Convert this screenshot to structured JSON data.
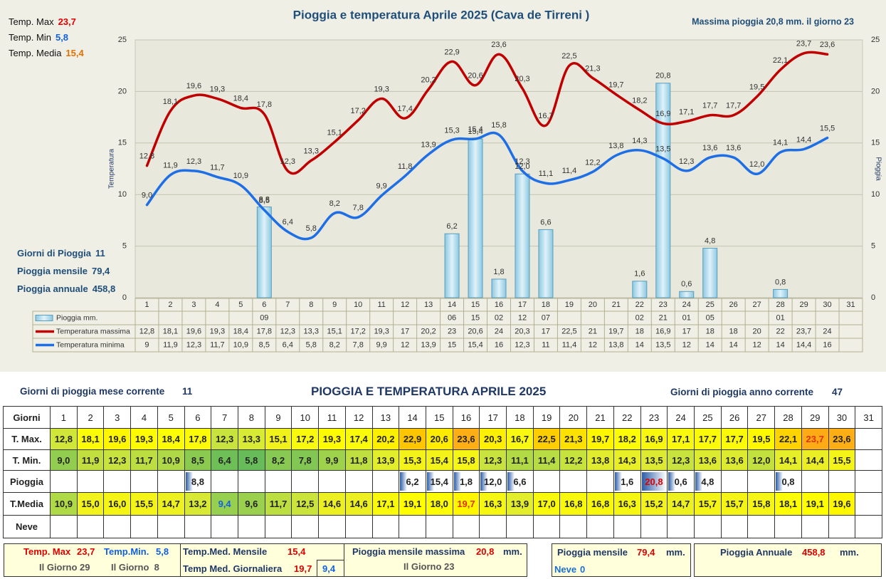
{
  "chart_data": {
    "type": "combo",
    "title": "Pioggia e temperatura Aprile 2025 (Cava de Tirreni )",
    "annotation": "Massima pioggia  20,8 mm. il giorno 23",
    "stats": [
      {
        "label": "Temp. Max",
        "value": "23,7",
        "color": "#e00000"
      },
      {
        "label": "Temp. Min",
        "value": "5,8",
        "color": "#1060e0"
      },
      {
        "label": "Temp. Media",
        "value": "15,4",
        "color": "#e07000"
      }
    ],
    "rain_stats": [
      {
        "label": "Giorni di Pioggia",
        "value": "11"
      },
      {
        "label": "Pioggia mensile",
        "value": "79,4"
      },
      {
        "label": "Pioggia annuale",
        "value": "458,8"
      }
    ],
    "ylabel": "Temperatura",
    "y2label": "Pioggia",
    "ylim": [
      0,
      25
    ],
    "yticks": [
      0,
      5,
      10,
      15,
      20,
      25
    ],
    "y2lim": [
      0,
      25
    ],
    "y2ticks": [
      0,
      5,
      10,
      15,
      20,
      25
    ],
    "grid": true,
    "categories": [
      "1",
      "2",
      "3",
      "4",
      "5",
      "6",
      "7",
      "8",
      "9",
      "10",
      "11",
      "12",
      "13",
      "14",
      "15",
      "16",
      "17",
      "18",
      "19",
      "20",
      "21",
      "22",
      "23",
      "24",
      "25",
      "26",
      "27",
      "28",
      "29",
      "30",
      "31"
    ],
    "series": [
      {
        "name": "Pioggia mm.",
        "type": "bar",
        "axis": "y2",
        "color": "#a8d8ea",
        "values": [
          null,
          null,
          null,
          null,
          null,
          8.8,
          null,
          null,
          null,
          null,
          null,
          null,
          null,
          6.2,
          15.4,
          1.8,
          12.0,
          6.6,
          null,
          null,
          null,
          1.6,
          20.8,
          0.6,
          4.8,
          null,
          null,
          0.8,
          null,
          null,
          null
        ],
        "value_labels": [
          null,
          null,
          null,
          null,
          null,
          "8,8",
          null,
          null,
          null,
          null,
          null,
          null,
          null,
          "6,2",
          "15,4",
          "1,8",
          "12,0",
          "6,6",
          null,
          null,
          null,
          "1,6",
          "20,8",
          "0,6",
          "4,8",
          null,
          null,
          "0,8",
          null,
          null,
          null
        ],
        "table_values": [
          null,
          null,
          null,
          null,
          null,
          "09",
          null,
          null,
          null,
          null,
          null,
          null,
          null,
          "06",
          "15",
          "02",
          "12",
          "07",
          null,
          null,
          null,
          "02",
          "21",
          "01",
          "05",
          null,
          null,
          "01",
          null,
          null,
          null
        ]
      },
      {
        "name": "Temperatura massima",
        "type": "line",
        "color": "#c00000",
        "values": [
          12.8,
          18.1,
          19.6,
          19.3,
          18.4,
          17.8,
          12.3,
          13.3,
          15.1,
          17.2,
          19.3,
          17.4,
          20.2,
          22.9,
          20.6,
          23.6,
          20.3,
          16.7,
          22.5,
          21.3,
          19.7,
          18.2,
          16.9,
          17.1,
          17.7,
          17.7,
          19.5,
          22.1,
          23.7,
          23.6,
          null
        ],
        "value_labels": [
          "12,8",
          "18,1",
          "19,6",
          "19,3",
          "18,4",
          "17,8",
          "12,3",
          "13,3",
          "15,1",
          "17,2",
          "19,3",
          "17,4",
          "20,2",
          "22,9",
          "20,6",
          "23,6",
          "20,3",
          "16,7",
          "22,5",
          "21,3",
          "19,7",
          "18,2",
          "16,9",
          "17,1",
          "17,7",
          "17,7",
          "19,5",
          "22,1",
          "23,7",
          "23,6",
          null
        ],
        "table_values": [
          "12,8",
          "18,1",
          "19,6",
          "19,3",
          "18,4",
          "17,8",
          "12,3",
          "13,3",
          "15,1",
          "17,2",
          "19,3",
          "17",
          "20,2",
          "23",
          "20,6",
          "24",
          "20,3",
          "17",
          "22,5",
          "21",
          "19,7",
          "18",
          "16,9",
          "17",
          "18",
          "18",
          "20",
          "22",
          "23,7",
          "24",
          null
        ]
      },
      {
        "name": "Temperatura minima",
        "type": "line",
        "color": "#1e6fe6",
        "values": [
          9.0,
          11.9,
          12.3,
          11.7,
          10.9,
          8.5,
          6.4,
          5.8,
          8.2,
          7.8,
          9.9,
          11.8,
          13.9,
          15.3,
          15.4,
          15.8,
          12.3,
          11.1,
          11.4,
          12.2,
          13.8,
          14.3,
          13.5,
          12.3,
          13.6,
          13.6,
          12.0,
          14.1,
          14.4,
          15.5,
          null
        ],
        "value_labels": [
          "9,0",
          "11,9",
          "12,3",
          "11,7",
          "10,9",
          "8,5",
          "6,4",
          "5,8",
          "8,2",
          "7,8",
          "9,9",
          "11,8",
          "13,9",
          "15,3",
          "15,4",
          "15,8",
          "12,3",
          "11,1",
          "11,4",
          "12,2",
          "13,8",
          "14,3",
          "13,5",
          "12,3",
          "13,6",
          "13,6",
          "12,0",
          "14,1",
          "14,4",
          "15,5",
          null
        ],
        "table_values": [
          "9",
          "11,9",
          "12,3",
          "11,7",
          "10,9",
          "8,5",
          "6,4",
          "5,8",
          "8,2",
          "7,8",
          "9,9",
          "12",
          "13,9",
          "15",
          "15,4",
          "16",
          "12,3",
          "11",
          "11,4",
          "12",
          "13,8",
          "14",
          "13,5",
          "12",
          "14",
          "14",
          "12",
          "14",
          "14,4",
          "16",
          null
        ]
      }
    ]
  },
  "summary_header": {
    "left_label": "Giorni di pioggia mese corrente",
    "left_value": "11",
    "title": "PIOGGIA E TEMPERATURA APRILE 2025",
    "right_label": "Giorni di pioggia anno corrente",
    "right_value": "47"
  },
  "table": {
    "rows": [
      {
        "label": "Giorni",
        "cells": [
          "1",
          "2",
          "3",
          "4",
          "5",
          "6",
          "7",
          "8",
          "9",
          "10",
          "11",
          "12",
          "13",
          "14",
          "15",
          "16",
          "17",
          "18",
          "19",
          "20",
          "21",
          "22",
          "23",
          "24",
          "25",
          "26",
          "27",
          "28",
          "29",
          "30",
          "31"
        ]
      },
      {
        "label": "T. Max.",
        "cells": [
          "12,8",
          "18,1",
          "19,6",
          "19,3",
          "18,4",
          "17,8",
          "12,3",
          "13,3",
          "15,1",
          "17,2",
          "19,3",
          "17,4",
          "20,2",
          "22,9",
          "20,6",
          "23,6",
          "20,3",
          "16,7",
          "22,5",
          "21,3",
          "19,7",
          "18,2",
          "16,9",
          "17,1",
          "17,7",
          "17,7",
          "19,5",
          "22,1",
          "23,7",
          "23,6",
          null
        ]
      },
      {
        "label": "T. Min.",
        "cells": [
          "9,0",
          "11,9",
          "12,3",
          "11,7",
          "10,9",
          "8,5",
          "6,4",
          "5,8",
          "8,2",
          "7,8",
          "9,9",
          "11,8",
          "13,9",
          "15,3",
          "15,4",
          "15,8",
          "12,3",
          "11,1",
          "11,4",
          "12,2",
          "13,8",
          "14,3",
          "13,5",
          "12,3",
          "13,6",
          "13,6",
          "12,0",
          "14,1",
          "14,4",
          "15,5",
          null
        ]
      },
      {
        "label": "Pioggia",
        "cells": [
          null,
          null,
          null,
          null,
          null,
          "8,8",
          null,
          null,
          null,
          null,
          null,
          null,
          null,
          "6,2",
          "15,4",
          "1,8",
          "12,0",
          "6,6",
          null,
          null,
          null,
          "1,6",
          "20,8",
          "0,6",
          "4,8",
          null,
          null,
          "0,8",
          null,
          null,
          null
        ]
      },
      {
        "label": "T.Media",
        "cells": [
          "10,9",
          "15,0",
          "16,0",
          "15,5",
          "14,7",
          "13,2",
          "9,4",
          "9,6",
          "11,7",
          "12,5",
          "14,6",
          "14,6",
          "17,1",
          "19,1",
          "18,0",
          "19,7",
          "16,3",
          "13,9",
          "17,0",
          "16,8",
          "16,8",
          "16,3",
          "15,2",
          "14,7",
          "15,7",
          "15,7",
          "15,8",
          "18,1",
          "19,1",
          "19,6",
          null
        ]
      },
      {
        "label": "Neve",
        "cells": [
          null,
          null,
          null,
          null,
          null,
          null,
          null,
          null,
          null,
          null,
          null,
          null,
          null,
          null,
          null,
          null,
          null,
          null,
          null,
          null,
          null,
          null,
          null,
          null,
          null,
          null,
          null,
          null,
          null,
          null,
          null
        ]
      }
    ]
  },
  "footer": {
    "tmax_label": "Temp. Max",
    "tmax_value": "23,7",
    "tmin_label": "Temp.Min.",
    "tmin_value": "5,8",
    "tmax_day": "Il Giorno 29",
    "tmin_day": "Il Giorno  8",
    "med_mensile_label": "Temp.Med. Mensile",
    "med_mensile_value": "15,4",
    "med_giornaliera_label": "Temp Med. Giornaliera",
    "med_giornaliera_max": "19,7",
    "med_giornaliera_min": "9,4",
    "pioggia_max_label": "Pioggia mensile massima",
    "pioggia_max_value": "20,8",
    "pioggia_max_unit": "mm.",
    "pioggia_max_day": "Il Giorno 23",
    "pioggia_mensile_label": "Pioggia mensile",
    "pioggia_mensile_value": "79,4",
    "pioggia_mensile_unit": "mm.",
    "neve_label": "Neve",
    "neve_value": "0",
    "pioggia_annuale_label": "Pioggia Annuale",
    "pioggia_annuale_value": "458,8",
    "pioggia_annuale_unit": "mm."
  }
}
